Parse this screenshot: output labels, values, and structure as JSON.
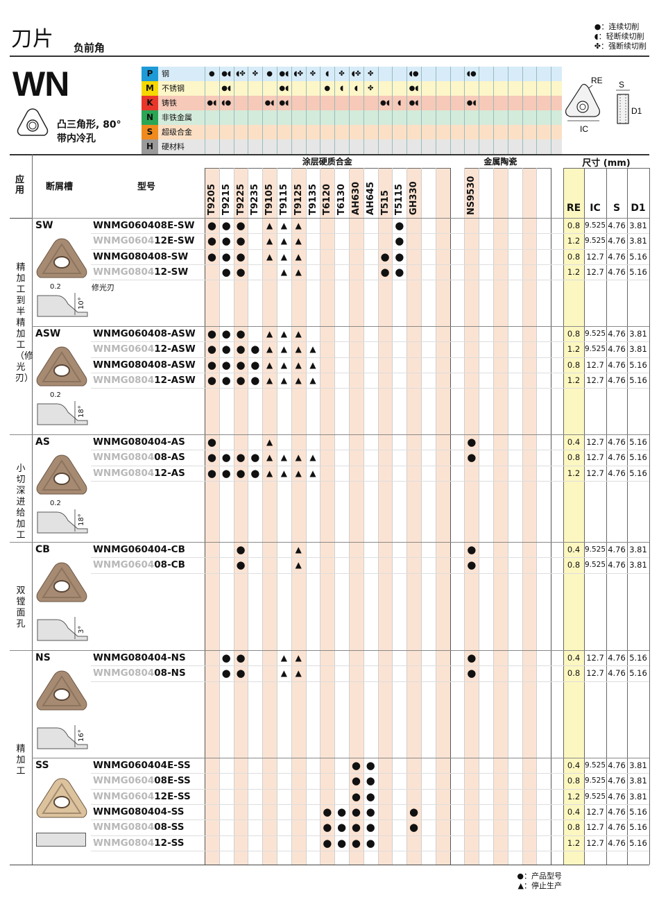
{
  "header": {
    "title": "刀片",
    "subtitle": "负前角",
    "legend": [
      "●：连续切削",
      "◖：轻断续切削",
      "✤：强断续切削"
    ]
  },
  "product": {
    "code": "WN",
    "shape_desc_1": "凸三角形, 80°",
    "shape_desc_2": "带内冷孔"
  },
  "materials": [
    {
      "code": "P",
      "name": "钢",
      "color": "#1e9bd7",
      "bg": "#d7ecf8",
      "cells": [
        "●",
        "●◖",
        "◖✤",
        "✤",
        "●",
        "●◖",
        "◖✤",
        "✤",
        "◖",
        "✤",
        "◖✤",
        "✤",
        "",
        "",
        "◖●",
        "",
        "",
        "",
        "◖●",
        "",
        "",
        "",
        "",
        ""
      ]
    },
    {
      "code": "M",
      "name": "不锈钢",
      "color": "#f5d800",
      "bg": "#fdf6c8",
      "cells": [
        "",
        "●◖",
        "",
        "",
        "",
        "●◖",
        "",
        "",
        "●",
        "◖",
        "◖",
        "✤",
        "",
        "",
        "●◖",
        "",
        "",
        "",
        "",
        "",
        "",
        "",
        "",
        ""
      ]
    },
    {
      "code": "K",
      "name": "铸铁",
      "color": "#e8362a",
      "bg": "#f6c9b9",
      "cells": [
        "●◖",
        "◖●",
        "",
        "",
        "●◖",
        "●◖",
        "",
        "",
        "",
        "",
        "",
        "",
        "●◖",
        "◖",
        "●◖",
        "",
        "",
        "",
        "●◖",
        "",
        "",
        "",
        "",
        ""
      ]
    },
    {
      "code": "N",
      "name": "非铁金属",
      "color": "#2aa655",
      "bg": "#d3ebdb",
      "cells": []
    },
    {
      "code": "S",
      "name": "超级合金",
      "color": "#f08a1d",
      "bg": "#fbe0c6",
      "cells": []
    },
    {
      "code": "H",
      "name": "硬材料",
      "color": "#9a9a9a",
      "bg": "#e6e6e6",
      "cells": []
    }
  ],
  "groups": {
    "coated": "涂层硬质合金",
    "cermet": "金属陶瓷",
    "dims": "尺寸 (mm)"
  },
  "headers": {
    "application": "应用",
    "chipbreaker": "断屑槽",
    "model": "型号"
  },
  "grades": [
    "T9205",
    "T9215",
    "T9225",
    "T9235",
    "T9105",
    "T9115",
    "T9125",
    "T9135",
    "T6120",
    "T6130",
    "AH630",
    "AH645",
    "T515",
    "T5115",
    "GH330",
    "",
    "",
    "",
    "NS9530",
    "",
    "",
    "",
    "",
    ""
  ],
  "dim_headers": [
    "RE",
    "IC",
    "S",
    "D1"
  ],
  "shape_labels": {
    "re": "RE",
    "s": "S",
    "d1": "D1",
    "ic": "IC"
  },
  "applications": [
    {
      "text": "精加工到半精加工（修光刃）"
    },
    {
      "text": "小切深进给加工"
    },
    {
      "text": "双镗面孔"
    },
    {
      "text": "精加工"
    }
  ],
  "sections": [
    {
      "cb": "SW",
      "angle": "10°",
      "dim": "0.2",
      "note": "修光刃",
      "rows": [
        {
          "g": "",
          "b": "WNMG060408E-SW",
          "s": {
            "0": "●",
            "1": "●",
            "2": "●",
            "4": "▲",
            "5": "▲",
            "6": "▲",
            "13": "●"
          },
          "d": [
            "0.8",
            "9.525",
            "4.76",
            "3.81"
          ]
        },
        {
          "g": "WNMG0604",
          "b": "12E-SW",
          "s": {
            "0": "●",
            "1": "●",
            "2": "●",
            "4": "▲",
            "5": "▲",
            "6": "▲",
            "13": "●"
          },
          "d": [
            "1.2",
            "9.525",
            "4.76",
            "3.81"
          ]
        },
        {
          "g": "",
          "b": "WNMG080408-SW",
          "s": {
            "0": "●",
            "1": "●",
            "2": "●",
            "4": "▲",
            "5": "▲",
            "6": "▲",
            "12": "●",
            "13": "●"
          },
          "d": [
            "0.8",
            "12.7",
            "4.76",
            "5.16"
          ]
        },
        {
          "g": "WNMG0804",
          "b": "12-SW",
          "s": {
            "1": "●",
            "2": "●",
            "5": "▲",
            "6": "▲",
            "12": "●",
            "13": "●"
          },
          "d": [
            "1.2",
            "12.7",
            "4.76",
            "5.16"
          ]
        }
      ]
    },
    {
      "cb": "ASW",
      "angle": "18°",
      "dim": "0.2",
      "note": "",
      "rows": [
        {
          "g": "",
          "b": "WNMG060408-ASW",
          "s": {
            "0": "●",
            "1": "●",
            "2": "●",
            "4": "▲",
            "5": "▲",
            "6": "▲"
          },
          "d": [
            "0.8",
            "9.525",
            "4.76",
            "3.81"
          ]
        },
        {
          "g": "WNMG0604",
          "b": "12-ASW",
          "s": {
            "0": "●",
            "1": "●",
            "2": "●",
            "3": "●",
            "4": "▲",
            "5": "▲",
            "6": "▲",
            "7": "▲"
          },
          "d": [
            "1.2",
            "9.525",
            "4.76",
            "3.81"
          ]
        },
        {
          "g": "",
          "b": "WNMG080408-ASW",
          "s": {
            "0": "●",
            "1": "●",
            "2": "●",
            "3": "●",
            "4": "▲",
            "5": "▲",
            "6": "▲",
            "7": "▲"
          },
          "d": [
            "0.8",
            "12.7",
            "4.76",
            "5.16"
          ]
        },
        {
          "g": "WNMG0804",
          "b": "12-ASW",
          "s": {
            "0": "●",
            "1": "●",
            "2": "●",
            "3": "●",
            "4": "▲",
            "5": "▲",
            "6": "▲",
            "7": "▲"
          },
          "d": [
            "1.2",
            "12.7",
            "4.76",
            "5.16"
          ]
        }
      ]
    },
    {
      "cb": "AS",
      "angle": "18°",
      "dim": "0.2",
      "note": "",
      "rows": [
        {
          "g": "",
          "b": "WNMG080404-AS",
          "s": {
            "0": "●",
            "4": "▲",
            "18": "●"
          },
          "d": [
            "0.4",
            "12.7",
            "4.76",
            "5.16"
          ]
        },
        {
          "g": "WNMG0804",
          "b": "08-AS",
          "s": {
            "0": "●",
            "1": "●",
            "2": "●",
            "3": "●",
            "4": "▲",
            "5": "▲",
            "6": "▲",
            "7": "▲",
            "18": "●"
          },
          "d": [
            "0.8",
            "12.7",
            "4.76",
            "5.16"
          ]
        },
        {
          "g": "WNMG0804",
          "b": "12-AS",
          "s": {
            "0": "●",
            "1": "●",
            "2": "●",
            "3": "●",
            "4": "▲",
            "5": "▲",
            "6": "▲",
            "7": "▲"
          },
          "d": [
            "1.2",
            "12.7",
            "4.76",
            "5.16"
          ]
        }
      ]
    },
    {
      "cb": "CB",
      "angle": "3°",
      "dim": "",
      "note": "",
      "rows": [
        {
          "g": "",
          "b": "WNMG060404-CB",
          "s": {
            "2": "●",
            "6": "▲",
            "18": "●"
          },
          "d": [
            "0.4",
            "9.525",
            "4.76",
            "3.81"
          ]
        },
        {
          "g": "WNMG0604",
          "b": "08-CB",
          "s": {
            "2": "●",
            "6": "▲",
            "18": "●"
          },
          "d": [
            "0.8",
            "9.525",
            "4.76",
            "3.81"
          ]
        }
      ]
    },
    {
      "cb": "NS",
      "angle": "16°",
      "dim": "",
      "note": "",
      "rows": [
        {
          "g": "",
          "b": "WNMG080404-NS",
          "s": {
            "1": "●",
            "2": "●",
            "5": "▲",
            "6": "▲",
            "18": "●"
          },
          "d": [
            "0.4",
            "12.7",
            "4.76",
            "5.16"
          ]
        },
        {
          "g": "WNMG0804",
          "b": "08-NS",
          "s": {
            "1": "●",
            "2": "●",
            "5": "▲",
            "6": "▲",
            "18": "●"
          },
          "d": [
            "0.8",
            "12.7",
            "4.76",
            "5.16"
          ]
        }
      ]
    },
    {
      "cb": "SS",
      "angle": "",
      "dim": "",
      "note": "",
      "rows": [
        {
          "g": "",
          "b": "WNMG060404E-SS",
          "s": {
            "10": "●",
            "11": "●"
          },
          "d": [
            "0.4",
            "9.525",
            "4.76",
            "3.81"
          ]
        },
        {
          "g": "WNMG0604",
          "b": "08E-SS",
          "s": {
            "10": "●",
            "11": "●"
          },
          "d": [
            "0.8",
            "9.525",
            "4.76",
            "3.81"
          ]
        },
        {
          "g": "WNMG0604",
          "b": "12E-SS",
          "s": {
            "10": "●",
            "11": "●"
          },
          "d": [
            "1.2",
            "9.525",
            "4.76",
            "3.81"
          ]
        },
        {
          "g": "",
          "b": "WNMG080404-SS",
          "s": {
            "8": "●",
            "9": "●",
            "10": "●",
            "11": "●",
            "14": "●"
          },
          "d": [
            "0.4",
            "12.7",
            "4.76",
            "5.16"
          ]
        },
        {
          "g": "WNMG0804",
          "b": "08-SS",
          "s": {
            "8": "●",
            "9": "●",
            "10": "●",
            "11": "●",
            "14": "●"
          },
          "d": [
            "0.8",
            "12.7",
            "4.76",
            "5.16"
          ]
        },
        {
          "g": "WNMG0804",
          "b": "12-SS",
          "s": {
            "8": "●",
            "9": "●",
            "10": "●",
            "11": "●"
          },
          "d": [
            "1.2",
            "12.7",
            "4.76",
            "5.16"
          ]
        }
      ]
    }
  ],
  "footer": {
    "line1": "●：产品型号",
    "line2": "▲：停止生产"
  }
}
